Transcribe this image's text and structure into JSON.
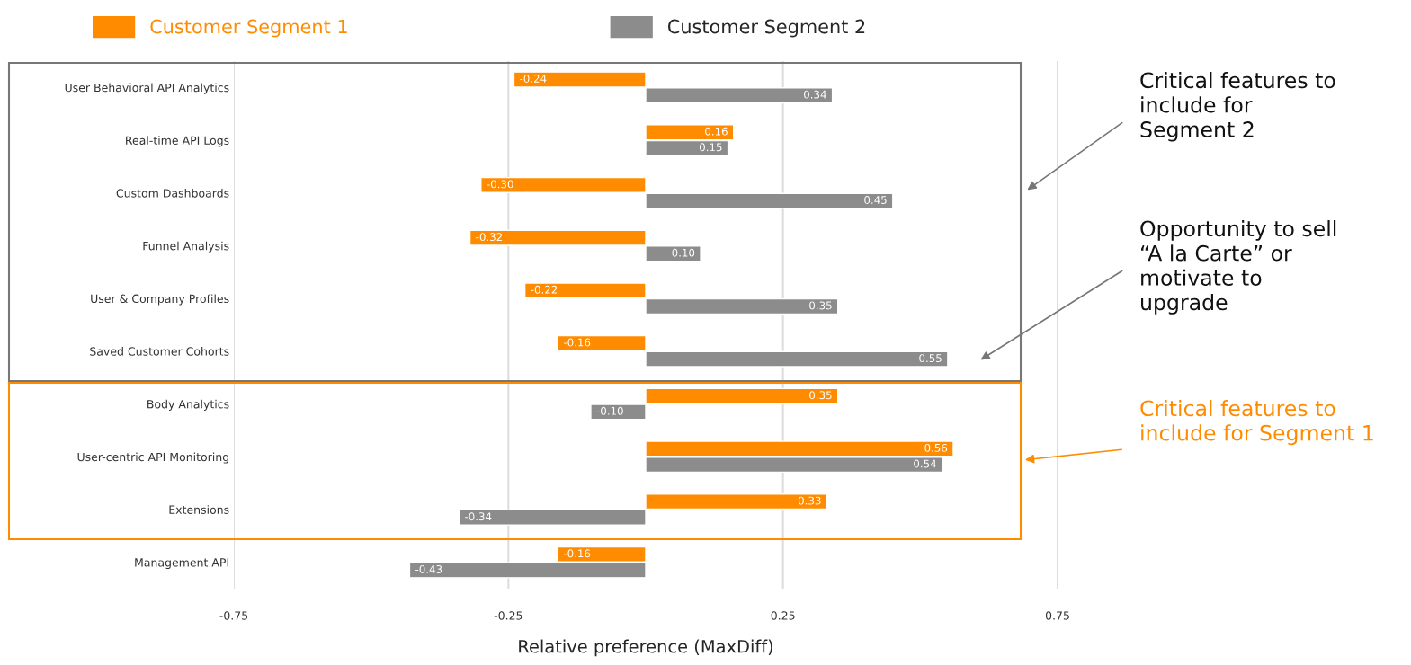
{
  "chart_data": {
    "type": "bar",
    "orientation": "horizontal",
    "xlabel": "Relative preference (MaxDiff)",
    "categories": [
      "User Behavioral API Analytics",
      "Real-time API Logs",
      "Custom Dashboards",
      "Funnel Analysis",
      "User & Company Profiles",
      "Saved Customer Cohorts",
      "Body Analytics",
      "User-centric API Monitoring",
      "Extensions",
      "Management API"
    ],
    "series": [
      {
        "name": "Customer Segment 1",
        "color": "#ff8c00",
        "values": [
          -0.24,
          0.16,
          -0.3,
          -0.32,
          -0.22,
          -0.16,
          0.35,
          0.56,
          0.33,
          -0.16
        ],
        "value_labels": [
          "-0.24",
          "0.16",
          "-0.30",
          "-0.32",
          "-0.22",
          "-0.16",
          "0.35",
          "0.56",
          "0.33",
          "-0.16"
        ]
      },
      {
        "name": "Customer Segment 2",
        "color": "#8c8c8c",
        "values": [
          0.34,
          0.15,
          0.45,
          0.1,
          0.35,
          0.55,
          -0.1,
          0.54,
          -0.34,
          -0.43
        ],
        "value_labels": [
          "0.34",
          "0.15",
          "0.45",
          "0.10",
          "0.35",
          "0.55",
          "-0.10",
          "0.54",
          "-0.34",
          "-0.43"
        ]
      }
    ],
    "xlim": [
      -0.75,
      0.75
    ],
    "xticks": [
      -0.75,
      -0.25,
      0.25,
      0.75
    ],
    "grid": "x",
    "legend": "top",
    "annotations": [
      "Critical features to\ninclude for\nSegment 2",
      "Opportunity to sell\n“A la Carte” or\nmotivate to\nupgrade",
      "Critical features to\ninclude for Segment 1"
    ]
  }
}
